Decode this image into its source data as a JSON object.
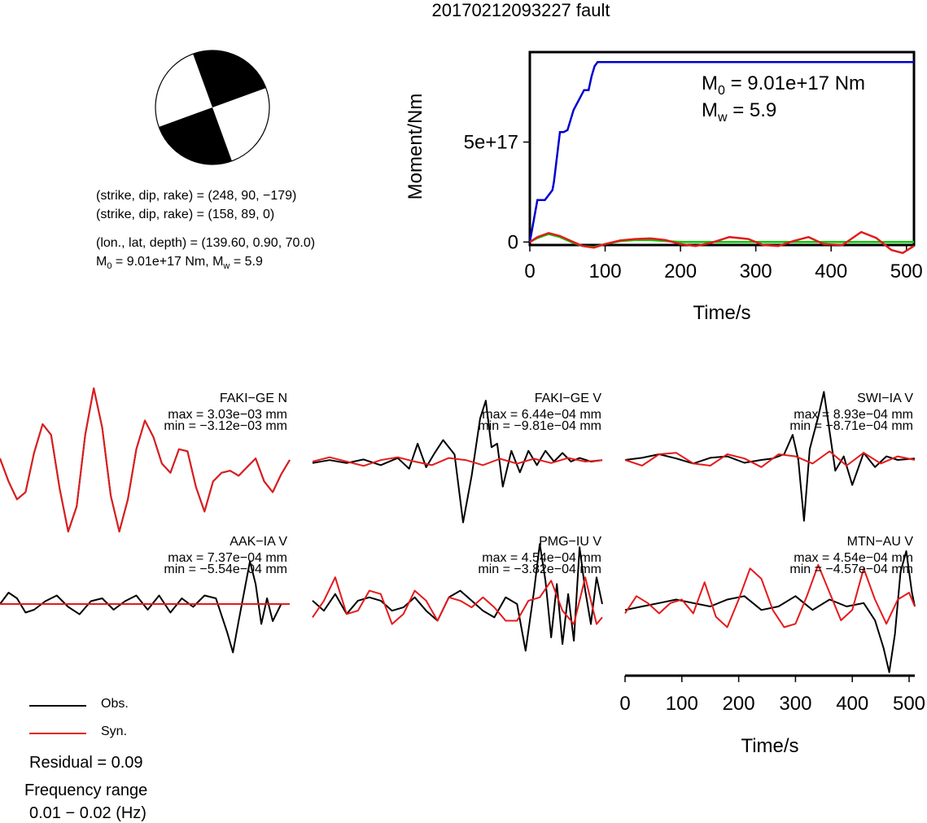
{
  "title": "20170212093227 fault",
  "focal_mechanism": {
    "plane1": "(strike, dip, rake) = (248, 90, −179)",
    "plane2": "(strike, dip, rake) = (158, 89, 0)",
    "location": "(lon., lat, depth) = (139.60, 0.90, 70.0)",
    "m0_prefix": "M",
    "m0_sub": "0",
    "m0_rest": " = 9.01e+17 Nm, M",
    "mw_sub": "w",
    "mw_rest": " = 5.9"
  },
  "legend": {
    "obs": "Obs.",
    "syn": "Syn.",
    "obs_color": "#000000",
    "syn_color": "#e41a1c"
  },
  "residual": "Residual = 0.09",
  "frequency_label": "Frequency range",
  "frequency_value": "0.01 − 0.02 (Hz)",
  "colors": {
    "moment": "#0000cc",
    "green": "#00cc00",
    "red": "#e41a1c",
    "black": "#000000"
  },
  "chart_data": [
    {
      "type": "line",
      "title": "",
      "xlabel": "Time/s",
      "ylabel": "Moment/Nm",
      "xlim": [
        0,
        510
      ],
      "ylim": [
        -1.5e+16,
        9.5e+17
      ],
      "xticks": [
        "0",
        "100",
        "200",
        "300",
        "400",
        "500"
      ],
      "yticks": [
        "0",
        "5e+17"
      ],
      "annotation_m0_prefix": "M",
      "annotation_m0_sub": "0",
      "annotation_m0_rest": " = 9.01e+17 Nm",
      "annotation_mw_prefix": "M",
      "annotation_mw_sub": "w",
      "annotation_mw_rest": " = 5.9",
      "series": [
        {
          "color": "#0000cc",
          "x": [
            0,
            10,
            20,
            30,
            32,
            40,
            45,
            50,
            58,
            65,
            72,
            78,
            82,
            86,
            90,
            510
          ],
          "y": [
            0,
            2.1e+17,
            2.1e+17,
            2.6e+17,
            3e+17,
            5.5e+17,
            5.5e+17,
            5.6e+17,
            6.6e+17,
            7.1e+17,
            7.6e+17,
            7.6e+17,
            8.3e+17,
            8.8e+17,
            9e+17,
            9e+17
          ]
        },
        {
          "color": "#00cc00",
          "x": [
            0,
            10,
            25,
            40,
            55,
            70,
            85,
            100,
            120,
            140,
            160,
            180,
            200,
            220,
            240,
            510
          ],
          "y": [
            0,
            2e+16,
            4e+16,
            2.5e+16,
            0,
            -2e+16,
            -2.5e+16,
            -1e+16,
            5000000000000000.0,
            1e+16,
            1e+16,
            5000000000000000.0,
            0,
            0,
            0,
            0
          ]
        },
        {
          "color": "#e41a1c",
          "x": [
            0,
            10,
            25,
            40,
            55,
            70,
            85,
            100,
            120,
            140,
            160,
            180,
            200,
            220,
            240,
            265,
            290,
            310,
            330,
            350,
            370,
            390,
            415,
            440,
            460,
            480,
            495,
            510
          ],
          "y": [
            0,
            2.5e+16,
            4.5e+16,
            3e+16,
            5000000000000000.0,
            -2e+16,
            -2.8e+16,
            -1e+16,
            8000000000000000.0,
            1.5e+16,
            1.8e+16,
            1e+16,
            -1e+16,
            -2e+16,
            -5000000000000000.0,
            2.5e+16,
            1.5e+16,
            -1.5e+16,
            -2e+16,
            5000000000000000.0,
            2.5e+16,
            -1e+16,
            -1.5e+16,
            5e+16,
            2e+16,
            -4e+16,
            -5.5e+16,
            -2e+16
          ]
        }
      ]
    },
    {
      "type": "line",
      "station": "FAKI−GE N",
      "max_label": "max = 3.03e−03 mm",
      "min_label": "min = −3.12e−03 mm",
      "xlim": [
        0,
        510
      ],
      "ylim": [
        -1,
        1
      ],
      "series": [
        {
          "name": "Obs.",
          "x": [
            0,
            15,
            30,
            45,
            60,
            75,
            90,
            105,
            120,
            135,
            150,
            165,
            180,
            195,
            210,
            225,
            240,
            255,
            270,
            285,
            300,
            315,
            330,
            345,
            360,
            375,
            390,
            405,
            420,
            435,
            450,
            465,
            480,
            495,
            510
          ],
          "y": [
            0.02,
            -0.3,
            -0.55,
            -0.45,
            0.1,
            0.5,
            0.35,
            -0.4,
            -1.0,
            -0.65,
            0.35,
            1.0,
            0.45,
            -0.5,
            -1.0,
            -0.55,
            0.15,
            0.55,
            0.32,
            -0.05,
            -0.18,
            0.15,
            0.12,
            -0.38,
            -0.72,
            -0.3,
            -0.18,
            -0.15,
            -0.22,
            -0.1,
            0.02,
            -0.3,
            -0.45,
            -0.2,
            0.0
          ]
        },
        {
          "name": "Syn.",
          "x": [
            0,
            15,
            30,
            45,
            60,
            75,
            90,
            105,
            120,
            135,
            150,
            165,
            180,
            195,
            210,
            225,
            240,
            255,
            270,
            285,
            300,
            315,
            330,
            345,
            360,
            375,
            390,
            405,
            420,
            435,
            450,
            465,
            480,
            495,
            510
          ],
          "y": [
            0.02,
            -0.3,
            -0.55,
            -0.45,
            0.1,
            0.5,
            0.35,
            -0.4,
            -1.0,
            -0.65,
            0.35,
            1.0,
            0.45,
            -0.5,
            -1.0,
            -0.55,
            0.15,
            0.55,
            0.32,
            -0.05,
            -0.18,
            0.15,
            0.12,
            -0.38,
            -0.72,
            -0.3,
            -0.18,
            -0.15,
            -0.22,
            -0.1,
            0.02,
            -0.3,
            -0.45,
            -0.2,
            0.0
          ]
        }
      ]
    },
    {
      "type": "line",
      "station": "FAKI−GE V",
      "max_label": "max = 6.44e−04 mm",
      "min_label": "min = −9.81e−04 mm",
      "xlim": [
        0,
        510
      ],
      "ylim": [
        -1,
        1
      ],
      "series": [
        {
          "name": "Obs.",
          "x": [
            0,
            30,
            60,
            90,
            120,
            150,
            170,
            185,
            200,
            215,
            230,
            250,
            265,
            280,
            295,
            305,
            315,
            325,
            335,
            350,
            365,
            380,
            395,
            410,
            425,
            440,
            455,
            470,
            490,
            510
          ],
          "y": [
            -0.02,
            0.02,
            -0.02,
            0.03,
            -0.05,
            0.05,
            -0.1,
            0.25,
            -0.08,
            0.12,
            0.3,
            0.1,
            -0.85,
            -0.2,
            0.6,
            0.85,
            0.2,
            0.25,
            -0.35,
            0.15,
            -0.15,
            0.15,
            -0.05,
            0.15,
            0.0,
            0.12,
            0.0,
            0.05,
            0.0,
            0.02
          ]
        },
        {
          "name": "Syn.",
          "x": [
            0,
            30,
            60,
            90,
            120,
            150,
            180,
            210,
            240,
            270,
            300,
            330,
            360,
            390,
            420,
            450,
            480,
            510
          ],
          "y": [
            0.0,
            0.06,
            0.0,
            -0.06,
            0.02,
            0.06,
            0.0,
            -0.05,
            0.05,
            0.02,
            -0.05,
            0.04,
            -0.03,
            0.04,
            -0.02,
            0.05,
            0.0,
            0.02
          ]
        }
      ]
    },
    {
      "type": "line",
      "station": "SWI−IA V",
      "max_label": "max = 8.93e−04 mm",
      "min_label": "min = −8.71e−04 mm",
      "xlim": [
        0,
        510
      ],
      "ylim": [
        -1,
        1
      ],
      "series": [
        {
          "name": "Obs.",
          "x": [
            0,
            30,
            60,
            90,
            120,
            150,
            180,
            210,
            240,
            260,
            280,
            295,
            305,
            315,
            325,
            340,
            350,
            360,
            370,
            385,
            400,
            420,
            440,
            460,
            480,
            510
          ],
          "y": [
            0.0,
            0.03,
            0.08,
            0.02,
            -0.05,
            0.03,
            0.05,
            -0.04,
            0.0,
            0.02,
            0.08,
            0.35,
            0.0,
            -0.85,
            0.15,
            0.6,
            0.95,
            0.4,
            -0.15,
            0.05,
            -0.35,
            0.1,
            -0.1,
            0.05,
            0.0,
            0.02
          ]
        },
        {
          "name": "Syn.",
          "x": [
            0,
            30,
            60,
            90,
            120,
            150,
            180,
            210,
            240,
            270,
            300,
            330,
            360,
            390,
            420,
            450,
            480,
            510
          ],
          "y": [
            0.0,
            -0.08,
            0.08,
            0.1,
            -0.05,
            -0.08,
            0.08,
            0.02,
            -0.1,
            0.08,
            0.05,
            -0.05,
            0.12,
            -0.08,
            0.1,
            -0.05,
            0.05,
            0.0
          ]
        }
      ]
    },
    {
      "type": "line",
      "station": "AAK−IA V",
      "max_label": "max = 7.37e−04 mm",
      "min_label": "min = −5.54e−04 mm",
      "xlim": [
        0,
        510
      ],
      "ylim": [
        -1,
        1
      ],
      "series": [
        {
          "name": "Obs.",
          "x": [
            0,
            15,
            30,
            45,
            60,
            80,
            100,
            120,
            140,
            160,
            180,
            200,
            220,
            240,
            260,
            280,
            300,
            320,
            340,
            360,
            380,
            400,
            410,
            420,
            440,
            450,
            460,
            470,
            480,
            495,
            510
          ],
          "y": [
            0.0,
            0.2,
            0.1,
            -0.15,
            -0.1,
            0.05,
            0.15,
            -0.05,
            -0.18,
            0.05,
            0.1,
            -0.1,
            0.05,
            0.15,
            -0.1,
            0.15,
            -0.15,
            0.1,
            -0.05,
            0.15,
            0.1,
            -0.5,
            -0.85,
            -0.3,
            0.75,
            0.35,
            -0.35,
            0.1,
            -0.3,
            0.0,
            0.0
          ]
        },
        {
          "name": "Syn.",
          "x": [
            0,
            510
          ],
          "y": [
            0.0,
            0.0
          ]
        }
      ]
    },
    {
      "type": "line",
      "station": "PMG−IU V",
      "max_label": "max = 4.54e−04 mm",
      "min_label": "min = −3.82e−04 mm",
      "xlim": [
        0,
        510
      ],
      "ylim": [
        -1,
        1
      ],
      "series": [
        {
          "name": "Obs.",
          "x": [
            0,
            20,
            40,
            60,
            80,
            100,
            120,
            140,
            160,
            180,
            200,
            220,
            240,
            260,
            280,
            300,
            320,
            340,
            360,
            375,
            390,
            400,
            410,
            420,
            430,
            440,
            450,
            460,
            470,
            480,
            490,
            500,
            510
          ],
          "y": [
            0.05,
            -0.1,
            0.15,
            -0.15,
            0.05,
            0.1,
            0.05,
            -0.1,
            -0.05,
            0.1,
            -0.1,
            -0.25,
            0.1,
            0.2,
            0.05,
            -0.1,
            -0.2,
            0.1,
            0.0,
            -0.7,
            0.2,
            0.9,
            0.35,
            -0.5,
            0.3,
            -0.6,
            0.15,
            -0.55,
            0.85,
            0.2,
            -0.3,
            0.4,
            0.0
          ]
        },
        {
          "name": "Syn.",
          "x": [
            0,
            20,
            40,
            60,
            80,
            100,
            120,
            140,
            160,
            180,
            200,
            220,
            240,
            260,
            280,
            300,
            320,
            340,
            360,
            380,
            400,
            420,
            440,
            460,
            480,
            500,
            510
          ],
          "y": [
            -0.2,
            0.05,
            0.4,
            -0.15,
            -0.1,
            0.2,
            0.15,
            -0.3,
            -0.15,
            0.2,
            0.05,
            -0.25,
            0.1,
            0.05,
            -0.05,
            0.1,
            -0.05,
            -0.25,
            -0.25,
            0.05,
            0.1,
            0.35,
            -0.1,
            -0.3,
            0.4,
            -0.3,
            -0.2
          ]
        }
      ]
    },
    {
      "type": "line",
      "station": "MTN−AU V",
      "max_label": "max = 4.54e−04 mm",
      "min_label": "min = −4.57e−04 mm",
      "xlabel": "Time/s",
      "xlim": [
        0,
        510
      ],
      "ylim": [
        -1,
        1
      ],
      "xticks": [
        "0",
        "100",
        "200",
        "300",
        "400",
        "500"
      ],
      "series": [
        {
          "name": "Obs.",
          "x": [
            0,
            30,
            60,
            90,
            120,
            150,
            180,
            210,
            240,
            270,
            300,
            330,
            360,
            390,
            420,
            440,
            455,
            465,
            475,
            485,
            495,
            505,
            510
          ],
          "y": [
            -0.05,
            0.0,
            0.05,
            0.1,
            0.05,
            0.0,
            0.1,
            0.15,
            -0.05,
            0.0,
            0.15,
            -0.05,
            0.1,
            0.0,
            0.05,
            -0.2,
            -0.6,
            -0.95,
            -0.4,
            0.5,
            0.8,
            0.2,
            0.0
          ]
        },
        {
          "name": "Syn.",
          "x": [
            0,
            20,
            40,
            60,
            80,
            100,
            120,
            140,
            160,
            180,
            200,
            220,
            240,
            260,
            280,
            300,
            320,
            340,
            360,
            380,
            400,
            420,
            440,
            460,
            480,
            500,
            510
          ],
          "y": [
            -0.1,
            0.15,
            0.05,
            -0.1,
            0.05,
            0.1,
            -0.1,
            0.35,
            -0.15,
            -0.3,
            0.1,
            0.55,
            0.4,
            -0.05,
            -0.3,
            -0.25,
            0.15,
            0.6,
            0.2,
            -0.2,
            -0.05,
            0.55,
            0.1,
            -0.25,
            0.1,
            0.2,
            0.0
          ]
        }
      ]
    }
  ]
}
